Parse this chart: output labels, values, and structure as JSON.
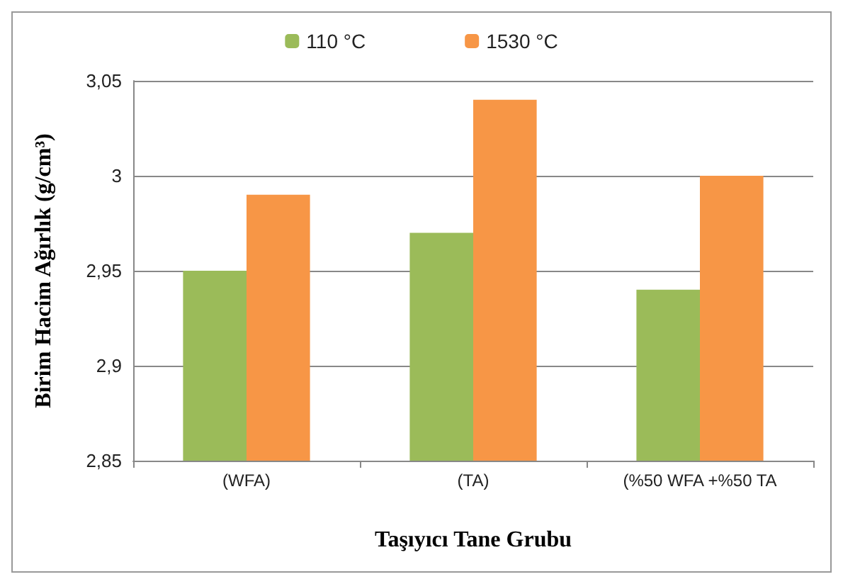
{
  "chart_data": {
    "type": "bar",
    "xlabel": "Taşıyıcı Tane Grubu",
    "ylabel": "Birim Hacim Ağırlık (g/cm³)",
    "categories": [
      "(WFA)",
      "(TA)",
      "(%50 WFA +%50 TA"
    ],
    "series": [
      {
        "name": "110 °C",
        "color": "#9bbb59",
        "values": [
          2.95,
          2.97,
          2.94
        ]
      },
      {
        "name": "1530 °C",
        "color": "#f79646",
        "values": [
          2.99,
          3.04,
          3.0
        ]
      }
    ],
    "ylim": [
      2.85,
      3.05
    ],
    "yticks": [
      {
        "value": 2.85,
        "label": "2,85"
      },
      {
        "value": 2.9,
        "label": "2,9"
      },
      {
        "value": 2.95,
        "label": "2,95"
      },
      {
        "value": 3,
        "label": "3"
      },
      {
        "value": 3.05,
        "label": "3,05"
      }
    ],
    "grid": "y",
    "legend": "top"
  }
}
